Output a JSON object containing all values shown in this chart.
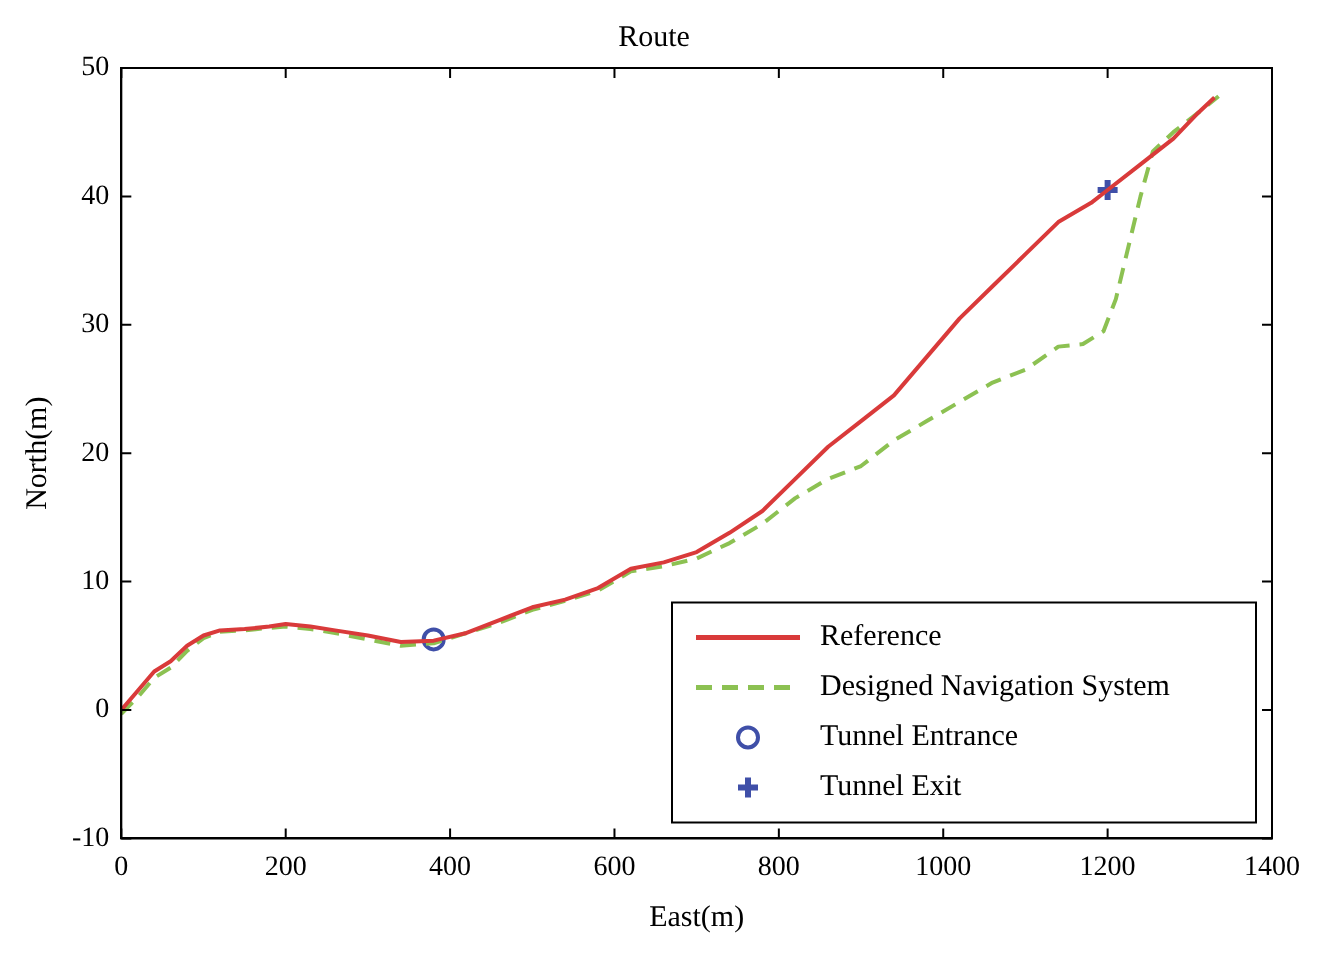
{
  "chart_data": {
    "type": "line",
    "title": "Route",
    "xlabel": "East(m)",
    "ylabel": "North(m)",
    "xlim": [
      0,
      1400
    ],
    "xticks": [
      0,
      200,
      400,
      600,
      800,
      1000,
      1200,
      1400
    ],
    "ylim": [
      -10,
      50
    ],
    "yticks": [
      -10,
      0,
      10,
      20,
      30,
      40,
      50
    ],
    "grid": false,
    "legend": "bottom right",
    "series": [
      {
        "name": "Reference",
        "color": "#d93a3a",
        "line_style": "solid",
        "marker": "none",
        "x": [
          0,
          20,
          40,
          60,
          80,
          100,
          120,
          150,
          180,
          200,
          230,
          260,
          300,
          340,
          380,
          420,
          460,
          500,
          540,
          580,
          620,
          660,
          700,
          740,
          780,
          820,
          860,
          900,
          940,
          980,
          1020,
          1060,
          1100,
          1140,
          1180,
          1200,
          1240,
          1280,
          1310,
          1330
        ],
        "values": [
          0,
          1.5,
          3,
          3.8,
          5,
          5.8,
          6.2,
          6.3,
          6.5,
          6.7,
          6.5,
          6.2,
          5.8,
          5.3,
          5.4,
          6,
          7,
          8,
          8.6,
          9.5,
          11,
          11.5,
          12.3,
          13.8,
          15.5,
          18,
          20.5,
          22.5,
          24.5,
          27.5,
          30.5,
          33,
          35.5,
          38,
          39.5,
          40.5,
          42.5,
          44.5,
          46.5,
          47.7
        ]
      },
      {
        "name": "Designed Navigation System",
        "color": "#8cc152",
        "line_style": "dashed",
        "marker": "none",
        "x": [
          0,
          20,
          40,
          60,
          80,
          100,
          120,
          150,
          180,
          200,
          230,
          260,
          300,
          340,
          380,
          420,
          460,
          500,
          540,
          580,
          620,
          660,
          700,
          740,
          780,
          820,
          860,
          900,
          940,
          980,
          1020,
          1060,
          1100,
          1140,
          1170,
          1195,
          1210,
          1225,
          1240,
          1255,
          1280,
          1310,
          1335
        ],
        "values": [
          -0.3,
          1,
          2.5,
          3.3,
          4.6,
          5.6,
          6.1,
          6.2,
          6.4,
          6.5,
          6.3,
          6,
          5.5,
          5,
          5.2,
          6,
          6.8,
          7.8,
          8.5,
          9.3,
          10.8,
          11.2,
          11.8,
          13,
          14.5,
          16.5,
          18,
          19,
          21,
          22.5,
          24,
          25.5,
          26.5,
          28.3,
          28.5,
          29.5,
          32,
          36,
          40,
          43.5,
          45,
          46.5,
          47.8
        ]
      },
      {
        "name": "Tunnel Entrance",
        "type": "scatter",
        "color": "#3f4fa8",
        "marker": "circle",
        "x": [
          380
        ],
        "values": [
          5.5
        ]
      },
      {
        "name": "Tunnel Exit",
        "type": "scatter",
        "color": "#3f4fa8",
        "marker": "cross",
        "x": [
          1200
        ],
        "values": [
          40.5
        ]
      }
    ]
  }
}
